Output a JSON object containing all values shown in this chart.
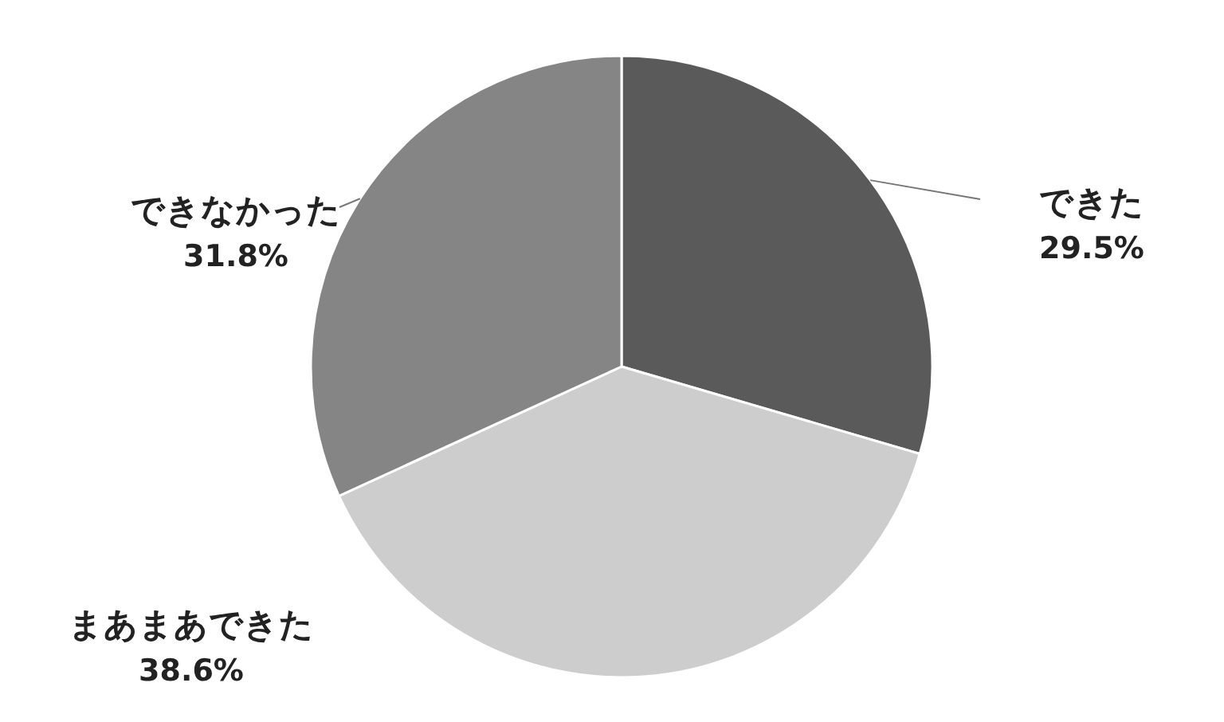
{
  "chart_data": {
    "type": "pie",
    "categories": [
      "できた",
      "まあまあできた",
      "できなかった"
    ],
    "values": [
      29.5,
      38.6,
      31.8
    ],
    "value_labels": [
      "29.5%",
      "38.6%",
      "31.8%"
    ],
    "colors": [
      "#5a5a5a",
      "#cdcdcd",
      "#858585"
    ]
  }
}
